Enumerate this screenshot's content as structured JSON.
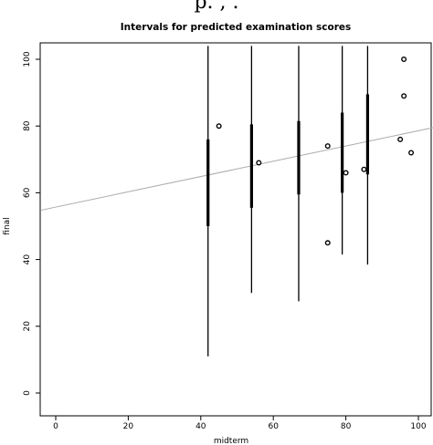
{
  "top_partial_text": "p. , .",
  "chart_data": {
    "type": "scatter",
    "title": "Intervals for predicted examination scores",
    "xlabel": "midterm",
    "ylabel": "final",
    "xlim": [
      -4,
      104
    ],
    "ylim": [
      -2,
      107
    ],
    "xticks": [
      0,
      20,
      40,
      60,
      80,
      100
    ],
    "yticks": [
      0,
      20,
      40,
      60,
      80,
      100
    ],
    "points": [
      {
        "x": 45,
        "y": 80
      },
      {
        "x": 56,
        "y": 69
      },
      {
        "x": 75,
        "y": 74
      },
      {
        "x": 75,
        "y": 45
      },
      {
        "x": 80,
        "y": 66
      },
      {
        "x": 85,
        "y": 67
      },
      {
        "x": 95,
        "y": 76
      },
      {
        "x": 96,
        "y": 100
      },
      {
        "x": 96,
        "y": 89
      },
      {
        "x": 98,
        "y": 72
      }
    ],
    "regression_line": {
      "x": [
        -4,
        104
      ],
      "y": [
        54.8,
        79.5
      ],
      "color": "#aaaaaa"
    },
    "intervals": [
      {
        "x": 42,
        "prediction": [
          11,
          104
        ],
        "confidence": [
          50,
          76
        ]
      },
      {
        "x": 54,
        "prediction": [
          30,
          104
        ],
        "confidence": [
          55.5,
          80.5
        ]
      },
      {
        "x": 67,
        "prediction": [
          27.5,
          104
        ],
        "confidence": [
          59.5,
          81.5
        ]
      },
      {
        "x": 79,
        "prediction": [
          41.5,
          104
        ],
        "confidence": [
          60,
          84
        ]
      },
      {
        "x": 86,
        "prediction": [
          38.5,
          104
        ],
        "confidence": [
          65.5,
          89.5
        ]
      }
    ]
  }
}
